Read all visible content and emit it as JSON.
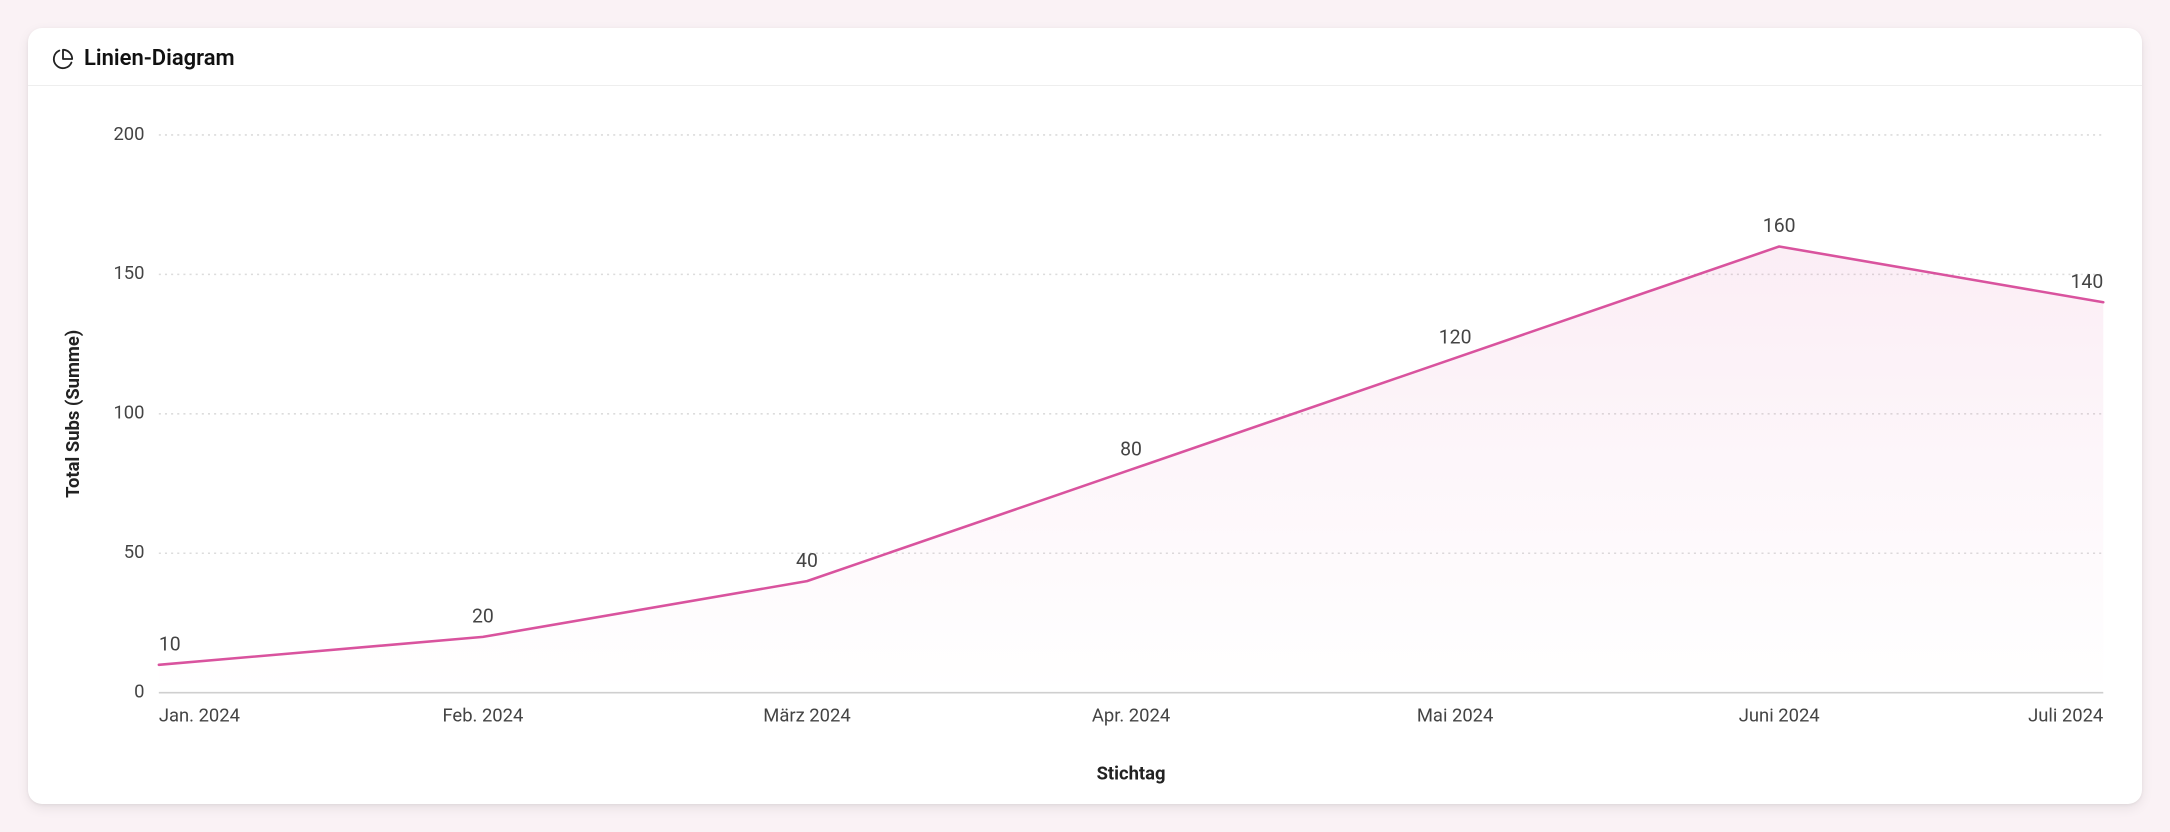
{
  "page": {
    "background_color": "#faf2f5"
  },
  "card": {
    "background_color": "#ffffff",
    "header": {
      "icon_name": "pie-chart",
      "title": "Linien-Diagram",
      "title_color": "#111111",
      "icon_color": "#222222",
      "border_color": "#eeeeee"
    }
  },
  "chart": {
    "type": "line",
    "x_axis_title": "Stichtag",
    "y_axis_title": "Total Subs (Summe)",
    "categories": [
      "Jan. 2024",
      "Feb. 2024",
      "März 2024",
      "Apr. 2024",
      "Mai 2024",
      "Juni 2024",
      "Juli 2024"
    ],
    "values": [
      10,
      20,
      40,
      80,
      120,
      160,
      140
    ],
    "value_labels": [
      "10",
      "20",
      "40",
      "80",
      "120",
      "160",
      "140"
    ],
    "ylim": [
      0,
      200
    ],
    "ytick_step": 50,
    "yticks": [
      0,
      50,
      100,
      150,
      200
    ],
    "line_color": "#d9539e",
    "line_width": 2.5,
    "fill_color_top": "rgba(217,83,158,0.10)",
    "fill_color_bottom": "rgba(217,83,158,0.00)",
    "grid_color": "#dcdcdc",
    "grid_dash": "2,4",
    "axis_line_color": "#cfcfcf",
    "tick_label_color": "#444444",
    "value_label_color": "#444444",
    "axis_title_color": "#222222",
    "background_color": "#ffffff",
    "tick_fontsize": 18,
    "value_fontsize": 19,
    "axis_title_fontsize": 18
  }
}
